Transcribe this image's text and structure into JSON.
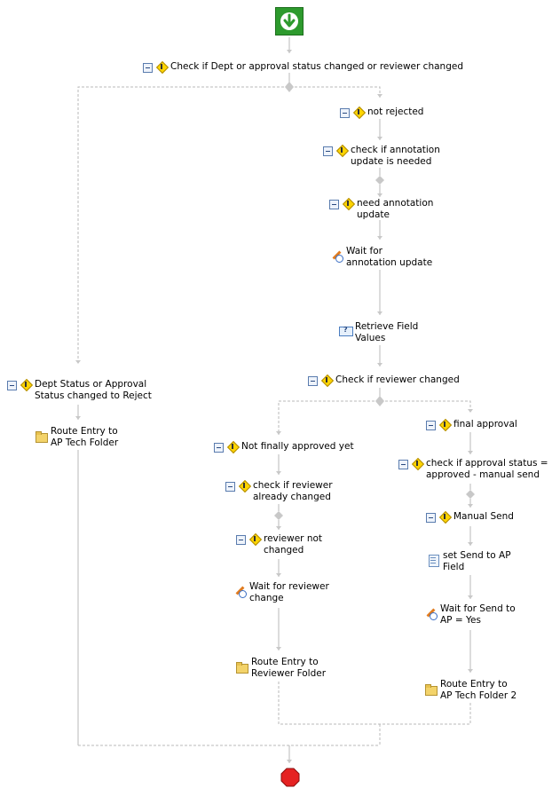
{
  "diagram": {
    "start": {
      "icon": "start-arrow-icon"
    },
    "end": {
      "icon": "stop-octagon-icon"
    },
    "nodes": [
      {
        "id": "n1",
        "icon": "condition-diamond-icon",
        "collapsible": true,
        "label": "Check if Dept or approval status changed or reviewer changed"
      },
      {
        "id": "n2",
        "icon": "condition-diamond-icon",
        "collapsible": true,
        "label": "not rejected"
      },
      {
        "id": "n3",
        "icon": "condition-diamond-icon",
        "collapsible": true,
        "label": "check if annotation\nupdate is needed"
      },
      {
        "id": "n4",
        "icon": "condition-diamond-icon",
        "collapsible": true,
        "label": "need annotation\nupdate"
      },
      {
        "id": "n5",
        "icon": "wait-pencil-icon",
        "collapsible": false,
        "label": "Wait for\nannotation update"
      },
      {
        "id": "n6",
        "icon": "field-icon",
        "collapsible": false,
        "label": "Retrieve Field\nValues"
      },
      {
        "id": "n7",
        "icon": "condition-diamond-icon",
        "collapsible": true,
        "label": "Check if reviewer changed"
      },
      {
        "id": "n8",
        "icon": "condition-diamond-icon",
        "collapsible": true,
        "label": "Dept Status or Approval\nStatus changed to Reject"
      },
      {
        "id": "n9",
        "icon": "folder-icon",
        "collapsible": false,
        "label": "Route Entry to\nAP Tech Folder"
      },
      {
        "id": "n10",
        "icon": "condition-diamond-icon",
        "collapsible": true,
        "label": "Not finally approved yet"
      },
      {
        "id": "n11",
        "icon": "condition-diamond-icon",
        "collapsible": true,
        "label": "check if reviewer\nalready changed"
      },
      {
        "id": "n12",
        "icon": "condition-diamond-icon",
        "collapsible": true,
        "label": "reviewer not\nchanged"
      },
      {
        "id": "n13",
        "icon": "wait-pencil-icon",
        "collapsible": false,
        "label": "Wait for reviewer\nchange"
      },
      {
        "id": "n14",
        "icon": "folder-icon",
        "collapsible": false,
        "label": "Route Entry to\nReviewer Folder"
      },
      {
        "id": "n15",
        "icon": "condition-diamond-icon",
        "collapsible": true,
        "label": "final approval"
      },
      {
        "id": "n16",
        "icon": "condition-diamond-icon",
        "collapsible": true,
        "label": "check if approval status =\napproved - manual send"
      },
      {
        "id": "n17",
        "icon": "condition-diamond-icon",
        "collapsible": true,
        "label": "Manual Send"
      },
      {
        "id": "n18",
        "icon": "document-icon",
        "collapsible": false,
        "label": "set Send to AP\nField"
      },
      {
        "id": "n19",
        "icon": "wait-pencil-icon",
        "collapsible": false,
        "label": "Wait for Send to\nAP = Yes"
      },
      {
        "id": "n20",
        "icon": "folder-icon",
        "collapsible": false,
        "label": "Route Entry to\nAP Tech Folder 2"
      }
    ]
  }
}
